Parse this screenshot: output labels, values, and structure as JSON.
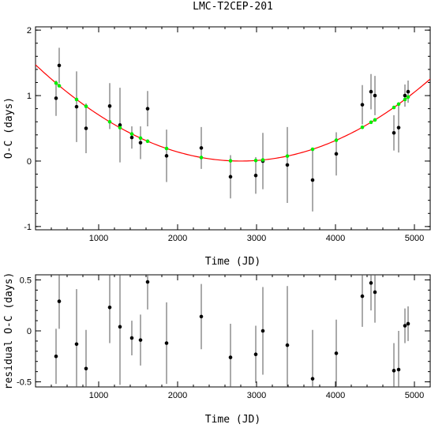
{
  "chart_data": [
    {
      "type": "scatter",
      "title": "LMC-T2CEP-201",
      "xlabel": "Time (JD)",
      "ylabel": "O-C (days)",
      "xlim": [
        200,
        5200
      ],
      "ylim": [
        -1.05,
        2.05
      ],
      "xticks": [
        "1000",
        "2000",
        "3000",
        "4000",
        "5000"
      ],
      "yticks": [
        "-1",
        "0",
        "1",
        "2"
      ],
      "fit": {
        "type": "quadratic",
        "color": "#ff0000",
        "vertex_x": 2800,
        "vertex_y": 0.0,
        "curvature": 2.175e-07
      },
      "model_marker_color": "#00ee00",
      "series": [
        {
          "points": [
            {
              "x": 460,
              "y": 0.96,
              "err": 0.27
            },
            {
              "x": 500,
              "y": 1.46,
              "err": 0.27
            },
            {
              "x": 720,
              "y": 0.83,
              "err": 0.54
            },
            {
              "x": 840,
              "y": 0.5,
              "err": 0.38
            },
            {
              "x": 1140,
              "y": 0.84,
              "err": 0.35
            },
            {
              "x": 1270,
              "y": 0.55,
              "err": 0.57
            },
            {
              "x": 1420,
              "y": 0.36,
              "err": 0.17
            },
            {
              "x": 1530,
              "y": 0.28,
              "err": 0.25
            },
            {
              "x": 1620,
              "y": 0.8,
              "err": 0.27
            },
            {
              "x": 1860,
              "y": 0.08,
              "err": 0.4
            },
            {
              "x": 2300,
              "y": 0.2,
              "err": 0.32
            },
            {
              "x": 2670,
              "y": -0.24,
              "err": 0.33
            },
            {
              "x": 2990,
              "y": -0.22,
              "err": 0.28
            },
            {
              "x": 3080,
              "y": 0.0,
              "err": 0.43
            },
            {
              "x": 3390,
              "y": -0.06,
              "err": 0.58
            },
            {
              "x": 3710,
              "y": -0.29,
              "err": 0.48
            },
            {
              "x": 4010,
              "y": 0.11,
              "err": 0.33
            },
            {
              "x": 4340,
              "y": 0.86,
              "err": 0.3
            },
            {
              "x": 4450,
              "y": 1.06,
              "err": 0.27
            },
            {
              "x": 4500,
              "y": 1.0,
              "err": 0.3
            },
            {
              "x": 4740,
              "y": 0.43,
              "err": 0.27
            },
            {
              "x": 4800,
              "y": 0.51,
              "err": 0.38
            },
            {
              "x": 4880,
              "y": 1.0,
              "err": 0.17
            },
            {
              "x": 4920,
              "y": 1.06,
              "err": 0.17
            }
          ]
        }
      ]
    },
    {
      "type": "scatter",
      "xlabel": "Time (JD)",
      "ylabel": "residual O-C (days)",
      "xlim": [
        200,
        5200
      ],
      "ylim": [
        -0.55,
        0.55
      ],
      "xticks": [
        "1000",
        "2000",
        "3000",
        "4000",
        "5000"
      ],
      "yticks": [
        "-0.5",
        "0",
        "0.5"
      ],
      "series": [
        {
          "points": [
            {
              "x": 460,
              "y": -0.25,
              "err": 0.27
            },
            {
              "x": 500,
              "y": 0.29,
              "err": 0.27
            },
            {
              "x": 720,
              "y": -0.13,
              "err": 0.54
            },
            {
              "x": 840,
              "y": -0.37,
              "err": 0.38
            },
            {
              "x": 1140,
              "y": 0.23,
              "err": 0.35
            },
            {
              "x": 1270,
              "y": 0.04,
              "err": 0.57
            },
            {
              "x": 1420,
              "y": -0.07,
              "err": 0.17
            },
            {
              "x": 1530,
              "y": -0.09,
              "err": 0.25
            },
            {
              "x": 1620,
              "y": 0.48,
              "err": 0.27
            },
            {
              "x": 1860,
              "y": -0.12,
              "err": 0.4
            },
            {
              "x": 2300,
              "y": 0.14,
              "err": 0.32
            },
            {
              "x": 2670,
              "y": -0.26,
              "err": 0.33
            },
            {
              "x": 2990,
              "y": -0.23,
              "err": 0.28
            },
            {
              "x": 3080,
              "y": 0.0,
              "err": 0.43
            },
            {
              "x": 3390,
              "y": -0.14,
              "err": 0.58
            },
            {
              "x": 3710,
              "y": -0.47,
              "err": 0.48
            },
            {
              "x": 4010,
              "y": -0.22,
              "err": 0.33
            },
            {
              "x": 4340,
              "y": 0.34,
              "err": 0.3
            },
            {
              "x": 4450,
              "y": 0.47,
              "err": 0.27
            },
            {
              "x": 4500,
              "y": 0.38,
              "err": 0.3
            },
            {
              "x": 4740,
              "y": -0.39,
              "err": 0.27
            },
            {
              "x": 4800,
              "y": -0.38,
              "err": 0.38
            },
            {
              "x": 4880,
              "y": 0.05,
              "err": 0.17
            },
            {
              "x": 4920,
              "y": 0.07,
              "err": 0.17
            }
          ]
        }
      ]
    }
  ]
}
